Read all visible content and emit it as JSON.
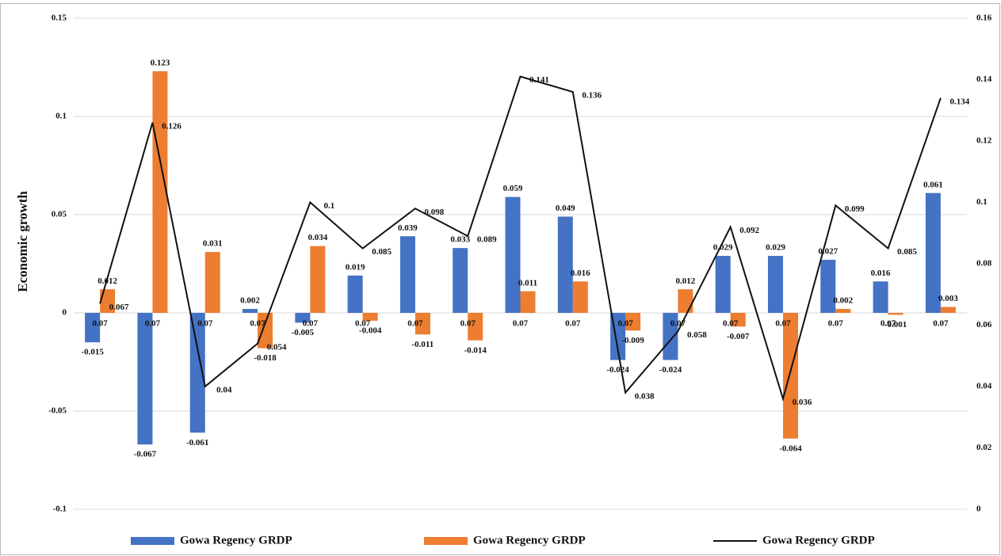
{
  "chart_data": {
    "type": "bar",
    "y_label": "Economic growth",
    "categories": [
      "0.07",
      "0.07",
      "0.07",
      "0.07",
      "0.07",
      "0.07",
      "0.07",
      "0.07",
      "0.07",
      "0.07",
      "0.07",
      "0.07",
      "0.07",
      "0.07",
      "0.07",
      "0.07",
      "0.07"
    ],
    "series": [
      {
        "name": "Gowa Regency GRDP",
        "type": "bar",
        "color": "#4472c4",
        "values": [
          -0.015,
          -0.067,
          -0.061,
          0.002,
          -0.005,
          0.019,
          0.039,
          0.033,
          0.059,
          0.049,
          -0.024,
          -0.024,
          0.029,
          0.029,
          0.027,
          0.016,
          0.061
        ]
      },
      {
        "name": "Gowa Regency GRDP",
        "type": "bar",
        "color": "#ed7d31",
        "values": [
          0.012,
          0.123,
          0.031,
          -0.018,
          0.034,
          -0.004,
          -0.011,
          -0.014,
          0.011,
          0.016,
          -0.009,
          0.012,
          -0.007,
          -0.064,
          0.002,
          -0.001,
          0.003
        ]
      },
      {
        "name": "Gowa Regency GRDP",
        "type": "line",
        "axis": "y2",
        "color": "#111111",
        "values": [
          0.067,
          0.126,
          0.04,
          0.054,
          0.1,
          0.085,
          0.098,
          0.089,
          0.141,
          0.136,
          0.038,
          0.058,
          0.092,
          0.036,
          0.099,
          0.085,
          0.134
        ]
      }
    ],
    "ylim": [
      -0.1,
      0.15
    ],
    "yticks": [
      -0.1,
      -0.05,
      0,
      0.05,
      0.1,
      0.15
    ],
    "y2lim": [
      0,
      0.16
    ],
    "y2ticks": [
      0,
      0.02,
      0.04,
      0.06,
      0.08,
      0.1,
      0.12,
      0.14,
      0.16
    ],
    "grid": true,
    "legend": "bottom"
  }
}
